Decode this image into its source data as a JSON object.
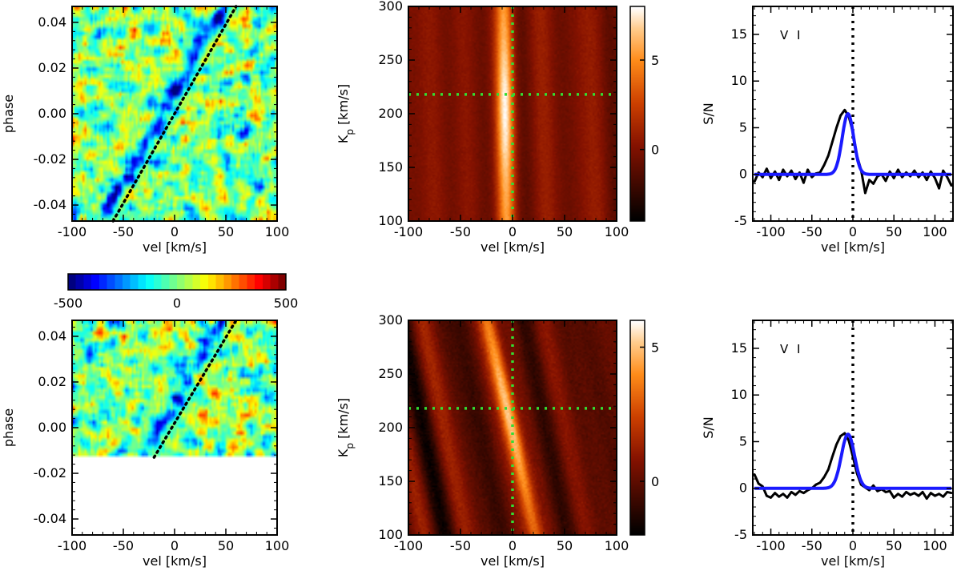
{
  "figure_title": "",
  "colors": {
    "observed_line": "#000000",
    "gaussian_fit": "#1a1aff",
    "kp_guides": "#33dd33",
    "trail_guide": "#000000"
  },
  "chart_data": [
    {
      "id": "trail_top",
      "type": "heatmap",
      "title": "",
      "xlabel": "vel [km/s]",
      "ylabel": "phase",
      "xlim": [
        -100,
        100
      ],
      "ylim": [
        -0.047,
        0.047
      ],
      "xticks": [
        -100,
        -50,
        0,
        50,
        100
      ],
      "xtick_labels": [
        "-100",
        "-50",
        "0",
        "50",
        "100"
      ],
      "yticks": [
        -0.04,
        -0.02,
        0.0,
        0.02,
        0.04
      ],
      "ytick_labels": [
        "-0.04",
        "-0.02",
        "0.00",
        "0.02",
        "0.04"
      ],
      "colormap": "jet",
      "color_range": [
        -500,
        500
      ],
      "phase_coverage": [
        -0.047,
        0.047
      ],
      "trail_guide": {
        "style": "dotted",
        "points": [
          [
            -60,
            -0.047
          ],
          [
            60,
            0.047
          ]
        ]
      }
    },
    {
      "id": "trail_bottom",
      "type": "heatmap",
      "title": "",
      "xlabel": "vel [km/s]",
      "ylabel": "phase",
      "xlim": [
        -100,
        100
      ],
      "ylim": [
        -0.047,
        0.047
      ],
      "xticks": [
        -100,
        -50,
        0,
        50,
        100
      ],
      "xtick_labels": [
        "-100",
        "-50",
        "0",
        "50",
        "100"
      ],
      "yticks": [
        -0.04,
        -0.02,
        0.0,
        0.02,
        0.04
      ],
      "ytick_labels": [
        "-0.04",
        "-0.02",
        "0.00",
        "0.02",
        "0.04"
      ],
      "colormap": "jet",
      "color_range": [
        -500,
        500
      ],
      "phase_coverage": [
        -0.013,
        0.047
      ],
      "trail_guide": {
        "style": "dotted",
        "points": [
          [
            -20,
            -0.013
          ],
          [
            60,
            0.047
          ]
        ]
      }
    },
    {
      "id": "colorbar_trails",
      "type": "colorbar",
      "orientation": "horizontal",
      "colormap": "jet",
      "range": [
        -500,
        500
      ],
      "ticks": [
        -500,
        0,
        500
      ],
      "tick_labels": [
        "-500",
        "0",
        "500"
      ]
    },
    {
      "id": "kp_map_top",
      "type": "heatmap",
      "title": "",
      "xlabel": "vel [km/s]",
      "ylabel": "K",
      "ylabel_sub": "p",
      "ylabel_suffix": " [km/s]",
      "xlim": [
        -100,
        100
      ],
      "ylim": [
        100,
        300
      ],
      "xticks": [
        -100,
        -50,
        0,
        50,
        100
      ],
      "xtick_labels": [
        "-100",
        "-50",
        "0",
        "50",
        "100"
      ],
      "yticks": [
        100,
        150,
        200,
        250,
        300
      ],
      "ytick_labels": [
        "100",
        "150",
        "200",
        "250",
        "300"
      ],
      "colormap": "gist_heat",
      "color_range": [
        -4,
        8
      ],
      "colorbar_ticks": [
        0,
        5
      ],
      "colorbar_tick_labels": [
        "0",
        "5"
      ],
      "guide_lines": {
        "vertical_vel": 0,
        "horizontal_kp": 218
      },
      "peak": {
        "vel": -5,
        "kp": 205,
        "snr": 8
      },
      "ridge": {
        "kp_at_100": -6,
        "kp_at_300": -8
      }
    },
    {
      "id": "kp_map_bottom",
      "type": "heatmap",
      "title": "",
      "xlabel": "vel [km/s]",
      "ylabel": "K",
      "ylabel_sub": "p",
      "ylabel_suffix": " [km/s]",
      "xlim": [
        -100,
        100
      ],
      "ylim": [
        100,
        300
      ],
      "xticks": [
        -100,
        -50,
        0,
        50,
        100
      ],
      "xtick_labels": [
        "-100",
        "-50",
        "0",
        "50",
        "100"
      ],
      "yticks": [
        100,
        150,
        200,
        250,
        300
      ],
      "ytick_labels": [
        "100",
        "150",
        "200",
        "250",
        "300"
      ],
      "colormap": "gist_heat",
      "color_range": [
        -2,
        6
      ],
      "colorbar_ticks": [
        0,
        5
      ],
      "colorbar_tick_labels": [
        "0",
        "5"
      ],
      "guide_lines": {
        "vertical_vel": 0,
        "horizontal_kp": 218
      },
      "peak": {
        "vel": -5,
        "kp": 210,
        "snr": 6
      },
      "ridge": {
        "kp_at_100": 22,
        "kp_at_300": -24
      }
    },
    {
      "id": "snr_top",
      "type": "line",
      "title": "",
      "xlabel": "vel [km/s]",
      "ylabel": "S/N",
      "annotation": "V I",
      "xlim": [
        -122,
        122
      ],
      "ylim": [
        -5,
        18
      ],
      "xticks": [
        -100,
        -50,
        0,
        50,
        100
      ],
      "xtick_labels": [
        "-100",
        "-50",
        "0",
        "50",
        "100"
      ],
      "yticks": [
        -5,
        0,
        5,
        10,
        15
      ],
      "ytick_labels": [
        "-5",
        "0",
        "5",
        "10",
        "15"
      ],
      "vline_at": 0,
      "series": [
        {
          "name": "S/N",
          "x": [
            -120,
            -115,
            -110,
            -105,
            -100,
            -95,
            -90,
            -85,
            -80,
            -75,
            -70,
            -65,
            -60,
            -55,
            -50,
            -45,
            -40,
            -35,
            -30,
            -25,
            -20,
            -15,
            -10,
            -5,
            0,
            5,
            10,
            15,
            20,
            25,
            30,
            35,
            40,
            45,
            50,
            55,
            60,
            65,
            70,
            75,
            80,
            85,
            90,
            95,
            100,
            105,
            110,
            115,
            120
          ],
          "y": [
            -0.8,
            0.2,
            -0.3,
            0.6,
            -0.4,
            0.3,
            -0.6,
            0.5,
            -0.2,
            0.4,
            -0.5,
            0.2,
            -0.9,
            0.5,
            -0.3,
            0.1,
            0.2,
            1.0,
            2.0,
            3.5,
            5.0,
            6.3,
            6.9,
            6.2,
            4.5,
            2.0,
            0.5,
            -2.0,
            -0.6,
            -1.0,
            -0.2,
            0.0,
            -0.7,
            0.3,
            -0.4,
            0.5,
            -0.3,
            0.2,
            -0.2,
            0.4,
            -0.3,
            0.2,
            -0.6,
            0.3,
            -0.4,
            -1.5,
            0.4,
            -0.3,
            -1.2
          ]
        },
        {
          "name": "Gaussian fit",
          "amplitude": 6.5,
          "center": -6,
          "sigma": 7,
          "x_range": [
            -120,
            120
          ]
        }
      ]
    },
    {
      "id": "snr_bottom",
      "type": "line",
      "title": "",
      "xlabel": "vel [km/s]",
      "ylabel": "S/N",
      "annotation": "V I",
      "xlim": [
        -122,
        122
      ],
      "ylim": [
        -5,
        18
      ],
      "xticks": [
        -100,
        -50,
        0,
        50,
        100
      ],
      "xtick_labels": [
        "-100",
        "-50",
        "0",
        "50",
        "100"
      ],
      "yticks": [
        -5,
        0,
        5,
        10,
        15
      ],
      "ytick_labels": [
        "-5",
        "0",
        "5",
        "10",
        "15"
      ],
      "vline_at": 0,
      "series": [
        {
          "name": "S/N",
          "x": [
            -120,
            -115,
            -110,
            -105,
            -100,
            -95,
            -90,
            -85,
            -80,
            -75,
            -70,
            -65,
            -60,
            -55,
            -50,
            -45,
            -40,
            -35,
            -30,
            -25,
            -20,
            -15,
            -10,
            -5,
            0,
            5,
            10,
            15,
            20,
            25,
            30,
            35,
            40,
            45,
            50,
            55,
            60,
            65,
            70,
            75,
            80,
            85,
            90,
            95,
            100,
            105,
            110,
            115,
            120
          ],
          "y": [
            1.5,
            0.5,
            0.2,
            -0.8,
            -1.0,
            -0.5,
            -0.9,
            -0.6,
            -1.0,
            -0.4,
            -0.7,
            -0.3,
            -0.5,
            -0.2,
            0.0,
            0.4,
            0.6,
            1.2,
            2.0,
            3.4,
            4.7,
            5.6,
            5.9,
            5.1,
            3.4,
            1.6,
            0.4,
            0.1,
            -0.2,
            0.3,
            -0.3,
            -0.1,
            -0.4,
            -0.3,
            -1.0,
            -0.6,
            -0.9,
            -0.4,
            -0.7,
            -0.5,
            -0.8,
            -0.4,
            -1.1,
            -0.5,
            -0.8,
            -0.6,
            -0.9,
            -0.4,
            -0.5
          ]
        },
        {
          "name": "Gaussian fit",
          "amplitude": 5.8,
          "center": -6,
          "sigma": 8,
          "x_range": [
            -120,
            120
          ]
        }
      ]
    }
  ]
}
